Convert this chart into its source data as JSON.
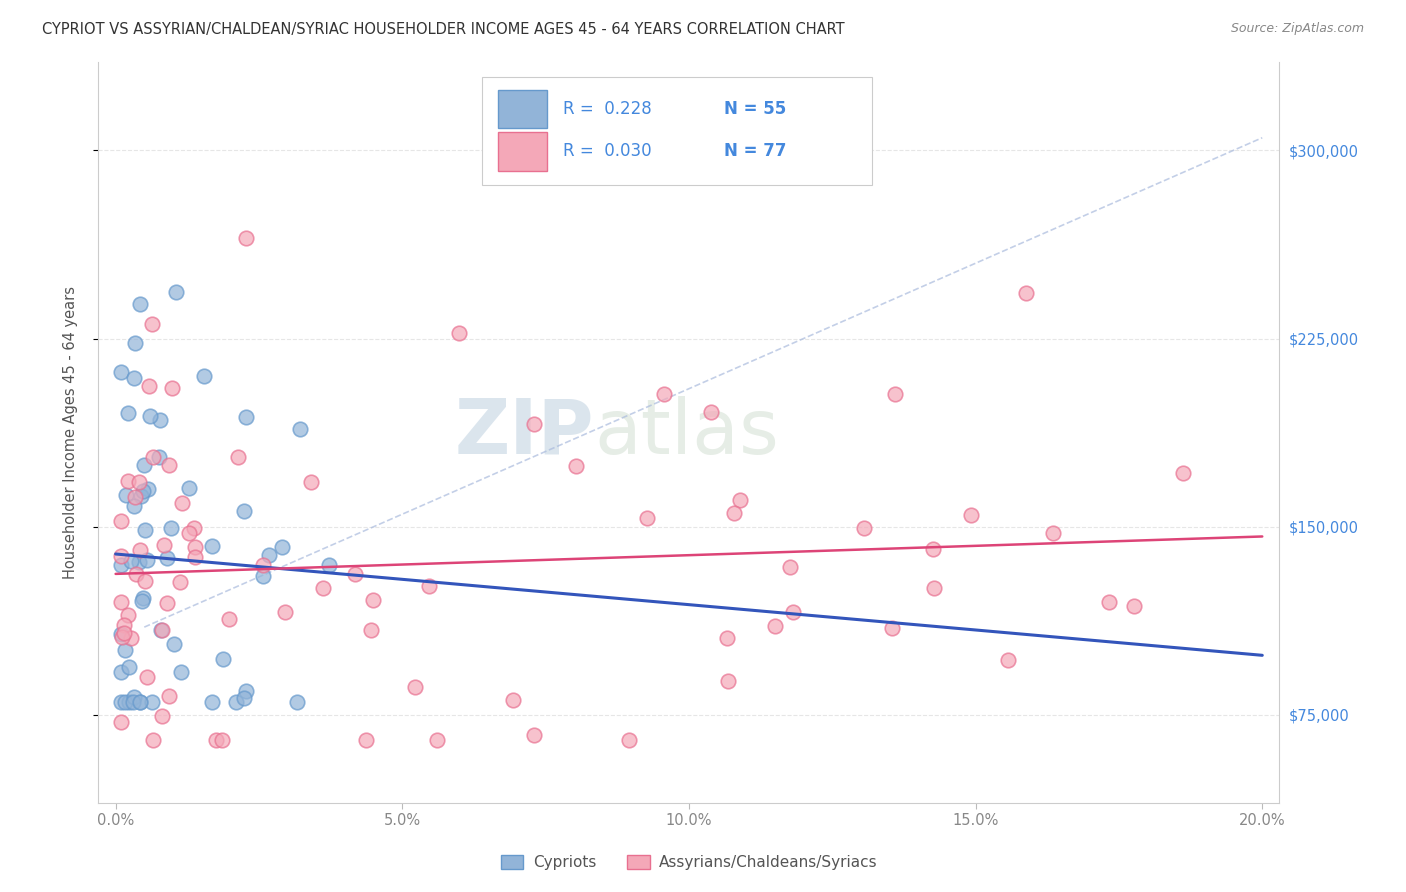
{
  "title": "CYPRIOT VS ASSYRIAN/CHALDEAN/SYRIAC HOUSEHOLDER INCOME AGES 45 - 64 YEARS CORRELATION CHART",
  "source": "Source: ZipAtlas.com",
  "ylabel": "Householder Income Ages 45 - 64 years",
  "xlabel_ticks": [
    "0.0%",
    "5.0%",
    "10.0%",
    "15.0%",
    "20.0%"
  ],
  "xlabel_vals": [
    0.0,
    0.05,
    0.1,
    0.15,
    0.2
  ],
  "ylabel_ticks": [
    "$75,000",
    "$150,000",
    "$225,000",
    "$300,000"
  ],
  "ylabel_vals": [
    75000,
    150000,
    225000,
    300000
  ],
  "R_cypriot": 0.228,
  "N_cypriot": 55,
  "R_assyrian": 0.03,
  "N_assyrian": 77,
  "cypriot_color": "#92B4D8",
  "cypriot_edge": "#6699CC",
  "assyrian_color": "#F4A8B8",
  "assyrian_edge": "#E87090",
  "cypriot_line_color": "#3355BB",
  "assyrian_line_color": "#DD4477",
  "legend_label_cypriot": "Cypriots",
  "legend_label_assyrian": "Assyrians/Chaldeans/Syriacs",
  "watermark_zip": "ZIP",
  "watermark_atlas": "atlas",
  "legend_text_color": "#4488DD",
  "grid_color": "#E0E0E0",
  "title_color": "#333333",
  "source_color": "#888888",
  "ylabel_color": "#555555",
  "ytick_color": "#4488DD",
  "xtick_color": "#888888"
}
